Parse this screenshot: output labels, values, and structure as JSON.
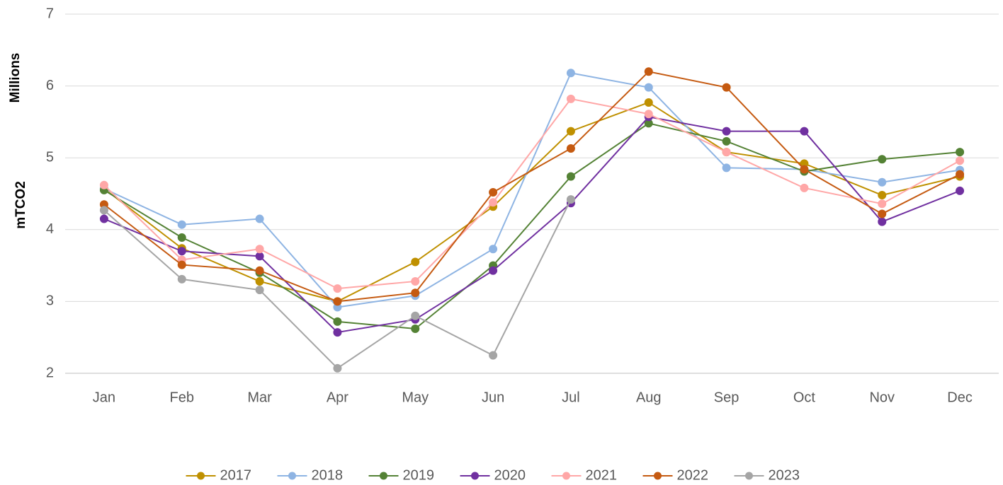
{
  "chart_data": {
    "type": "line",
    "y_axis_label": "mTCO2",
    "y_axis_units": "Millions",
    "categories": [
      "Jan",
      "Feb",
      "Mar",
      "Apr",
      "May",
      "Jun",
      "Jul",
      "Aug",
      "Sep",
      "Oct",
      "Nov",
      "Dec"
    ],
    "series": [
      {
        "name": "2017",
        "color": "#bf9000",
        "values": [
          4.57,
          3.74,
          3.28,
          3.0,
          3.55,
          4.32,
          5.37,
          5.77,
          5.08,
          4.92,
          4.48,
          4.74
        ]
      },
      {
        "name": "2018",
        "color": "#8eb4e3",
        "values": [
          4.57,
          4.07,
          4.15,
          2.92,
          3.08,
          3.73,
          6.18,
          5.98,
          4.86,
          4.84,
          4.66,
          4.83
        ]
      },
      {
        "name": "2019",
        "color": "#548235",
        "values": [
          4.55,
          3.89,
          3.4,
          2.72,
          2.62,
          3.5,
          4.74,
          5.48,
          5.23,
          4.81,
          4.98,
          5.08
        ]
      },
      {
        "name": "2020",
        "color": "#7030a0",
        "values": [
          4.15,
          3.7,
          3.63,
          2.57,
          2.75,
          3.43,
          4.37,
          5.57,
          5.37,
          5.37,
          4.11,
          4.54
        ]
      },
      {
        "name": "2021",
        "color": "#ffa7a7",
        "values": [
          4.62,
          3.58,
          3.73,
          3.18,
          3.28,
          4.38,
          5.82,
          5.61,
          5.08,
          4.58,
          4.36,
          4.96
        ]
      },
      {
        "name": "2022",
        "color": "#c55a11",
        "values": [
          4.35,
          3.51,
          3.43,
          3.0,
          3.12,
          4.52,
          5.13,
          6.2,
          5.98,
          4.84,
          4.22,
          4.77
        ]
      },
      {
        "name": "2023",
        "color": "#a5a5a5",
        "values": [
          4.27,
          3.31,
          3.16,
          2.07,
          2.8,
          2.25,
          4.42,
          null,
          null,
          null,
          null,
          null
        ]
      }
    ],
    "ylim": [
      2,
      7
    ],
    "yticks": [
      2,
      3,
      4,
      5,
      6,
      7
    ],
    "grid": true,
    "legend": "bottom"
  }
}
